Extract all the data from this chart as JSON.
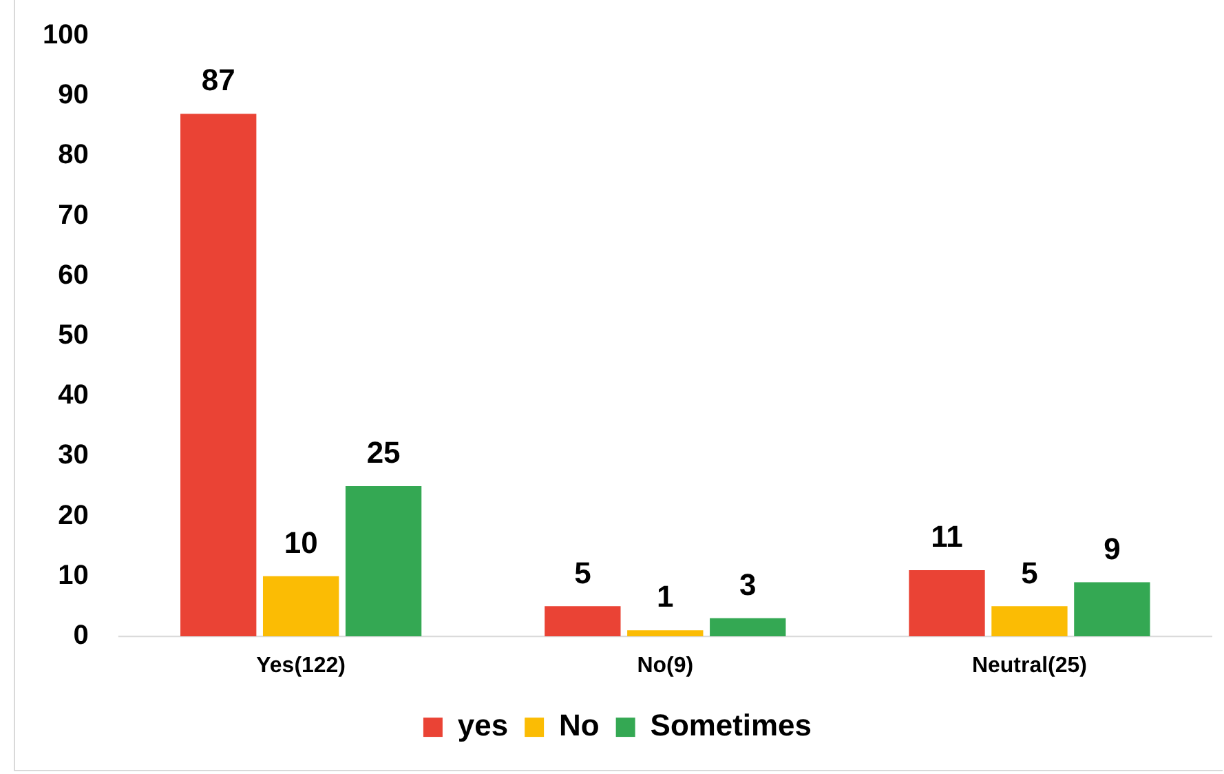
{
  "chart_data": {
    "type": "bar",
    "categories": [
      "Yes(122)",
      "No(9)",
      "Neutral(25)"
    ],
    "series": [
      {
        "name": "yes",
        "color": "#ea4335",
        "values": [
          87,
          5,
          11
        ]
      },
      {
        "name": "No",
        "color": "#fbbc04",
        "values": [
          10,
          1,
          5
        ]
      },
      {
        "name": "Sometimes",
        "color": "#34a853",
        "values": [
          25,
          3,
          9
        ]
      }
    ],
    "ylim": [
      0,
      100
    ],
    "yticks": [
      0,
      10,
      20,
      30,
      40,
      50,
      60,
      70,
      80,
      90,
      100
    ],
    "grid": false,
    "legend": "bottom",
    "data_labels": true
  }
}
